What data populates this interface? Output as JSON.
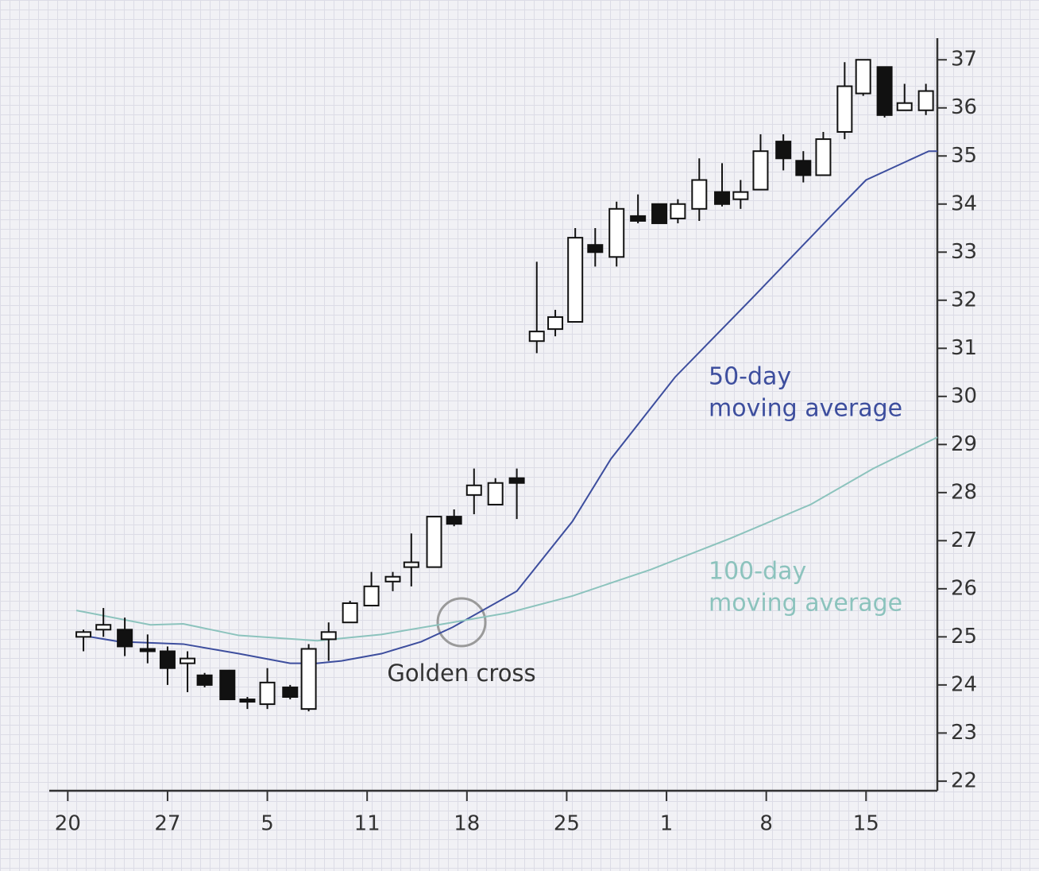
{
  "chart_data": {
    "type": "candlestick",
    "x": [
      1.1,
      2.5,
      4.0,
      5.6,
      7.0,
      8.4,
      9.6,
      11.2,
      12.6,
      14.0,
      15.6,
      16.9,
      18.3,
      19.8,
      21.3,
      22.8,
      24.1,
      25.7,
      27.1,
      28.5,
      30.0,
      31.5,
      32.9,
      34.2,
      35.6,
      37.0,
      38.5,
      40.0,
      41.5,
      42.8,
      44.3,
      45.9,
      47.2,
      48.6,
      50.2,
      51.6,
      53.0,
      54.5,
      55.8,
      57.3,
      58.7,
      60.2
    ],
    "open": [
      25.0,
      25.15,
      25.15,
      24.75,
      24.7,
      24.45,
      24.2,
      24.3,
      23.7,
      23.6,
      23.95,
      23.5,
      24.95,
      25.3,
      25.65,
      26.15,
      26.45,
      26.45,
      27.5,
      27.95,
      27.75,
      28.3,
      31.15,
      31.4,
      31.55,
      33.15,
      32.9,
      33.75,
      34.0,
      33.7,
      33.9,
      34.25,
      34.1,
      34.3,
      35.3,
      34.9,
      34.6,
      35.5,
      36.3,
      36.85,
      35.95,
      35.95
    ],
    "high": [
      25.15,
      25.6,
      25.4,
      25.05,
      24.8,
      24.7,
      24.25,
      24.3,
      23.75,
      24.35,
      24.0,
      24.85,
      25.3,
      25.75,
      26.35,
      26.35,
      27.15,
      27.5,
      27.65,
      28.5,
      28.3,
      28.5,
      32.8,
      31.8,
      33.5,
      33.5,
      34.05,
      34.2,
      34.0,
      34.1,
      34.95,
      34.85,
      34.5,
      35.45,
      35.45,
      35.1,
      35.5,
      36.95,
      37.0,
      36.85,
      36.5,
      36.5
    ],
    "low": [
      24.7,
      25.0,
      24.6,
      24.45,
      24.0,
      23.85,
      23.95,
      23.7,
      23.5,
      23.5,
      23.7,
      23.45,
      24.5,
      25.3,
      25.65,
      25.95,
      26.05,
      26.45,
      27.3,
      27.55,
      27.75,
      27.45,
      30.9,
      31.25,
      31.55,
      32.7,
      32.7,
      33.6,
      33.6,
      33.6,
      33.65,
      33.95,
      33.9,
      34.3,
      34.7,
      34.45,
      34.6,
      35.35,
      36.25,
      35.8,
      35.95,
      35.85
    ],
    "close": [
      25.1,
      25.25,
      24.8,
      24.7,
      24.35,
      24.55,
      24.0,
      23.7,
      23.65,
      24.05,
      23.75,
      24.75,
      25.1,
      25.7,
      26.05,
      26.25,
      26.55,
      27.5,
      27.35,
      28.15,
      28.2,
      28.2,
      31.35,
      31.65,
      33.3,
      33.0,
      33.9,
      33.65,
      33.6,
      34.0,
      34.5,
      34.0,
      34.25,
      35.1,
      34.95,
      34.6,
      35.35,
      36.45,
      37.0,
      35.85,
      36.1,
      36.35
    ],
    "up_fill": "#ffffff",
    "down_fill": "#111111",
    "series": [
      {
        "name": [
          "50-day",
          "moving average"
        ],
        "color": "#3d4e9e",
        "x": [
          0.6,
          3.6,
          8.1,
          12.0,
          15.6,
          17.5,
          19.2,
          22.0,
          24.8,
          27.0,
          31.5,
          35.4,
          38.1,
          42.6,
          48.2,
          53.7,
          56.0,
          60.4,
          61.0
        ],
        "values": [
          25.05,
          24.9,
          24.85,
          24.65,
          24.45,
          24.45,
          24.5,
          24.65,
          24.9,
          25.2,
          25.95,
          27.4,
          28.7,
          30.4,
          32.1,
          33.8,
          34.5,
          35.1,
          35.1
        ]
      },
      {
        "name": [
          "100-day",
          "moving average"
        ],
        "color": "#8cc3bd",
        "x": [
          0.6,
          5.8,
          8.1,
          12.0,
          17.5,
          22.0,
          26.4,
          30.9,
          35.4,
          40.9,
          46.5,
          52.1,
          56.5,
          61.0
        ],
        "values": [
          25.55,
          25.25,
          25.27,
          25.03,
          24.92,
          25.05,
          25.27,
          25.5,
          25.85,
          26.4,
          27.05,
          27.75,
          28.5,
          29.15
        ]
      }
    ],
    "annotation": "Golden cross",
    "xlim": [
      -1.3,
      61.0
    ],
    "xticks": [
      {
        "value": 0,
        "label": "20"
      },
      {
        "value": 7,
        "label": "27"
      },
      {
        "value": 14,
        "label": "5"
      },
      {
        "value": 21,
        "label": "11"
      },
      {
        "value": 28,
        "label": "18"
      },
      {
        "value": 35,
        "label": "25"
      },
      {
        "value": 42,
        "label": "1"
      },
      {
        "value": 49,
        "label": "8"
      },
      {
        "value": 56,
        "label": "15"
      }
    ],
    "ylim": [
      21.8,
      37.45
    ],
    "yticks": [
      22,
      23,
      24,
      25,
      26,
      27,
      28,
      29,
      30,
      31,
      32,
      33,
      34,
      35,
      36,
      37
    ]
  }
}
